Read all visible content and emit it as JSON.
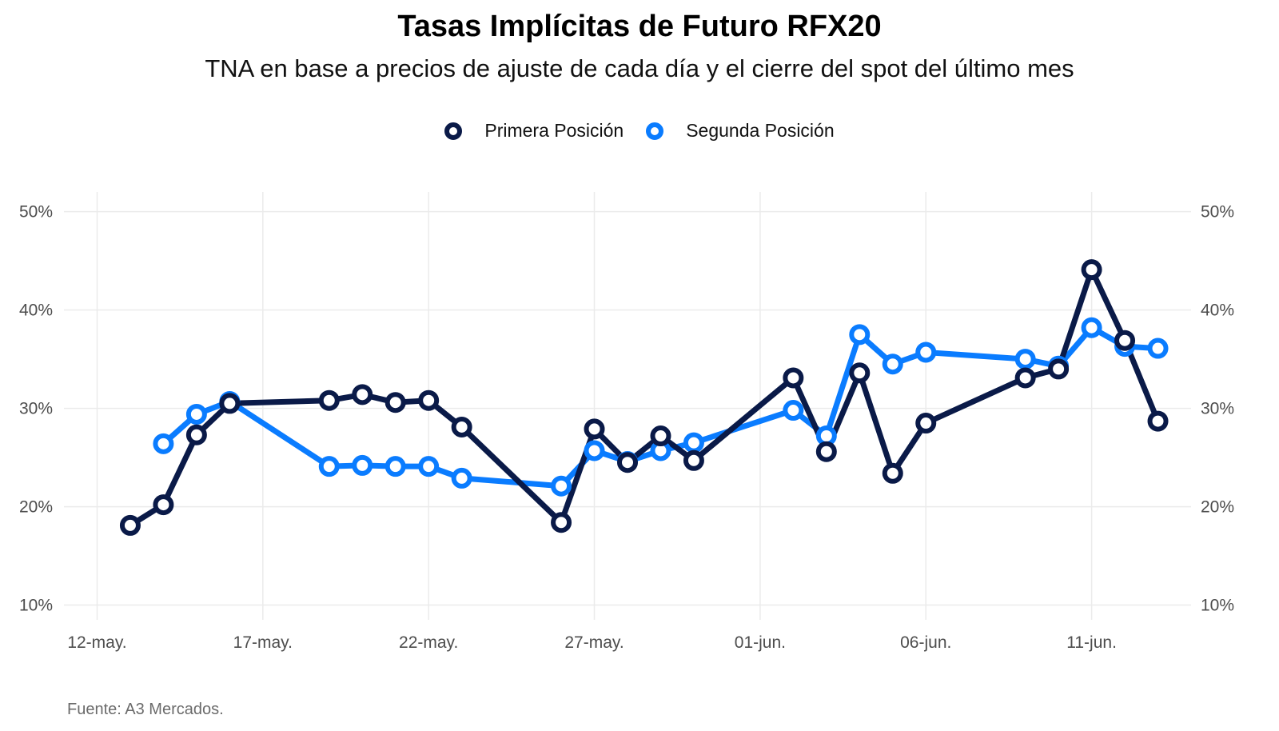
{
  "title": "Tasas Implícitas de Futuro RFX20",
  "subtitle": "TNA en base a precios de ajuste de cada día y el cierre del spot del último mes",
  "source": "Fuente: A3 Mercados.",
  "colors": {
    "primera": "#0a1a48",
    "segunda": "#0a7cff",
    "grid": "#ebebeb"
  },
  "chart_data": {
    "type": "line",
    "legend_position": "top",
    "grid": true,
    "ylim": [
      8.5,
      52
    ],
    "ytick_values": [
      10,
      20,
      30,
      40,
      50
    ],
    "ytick_labels": [
      "10%",
      "20%",
      "30%",
      "40%",
      "50%"
    ],
    "xtick_labels": [
      "12-may.",
      "17-may.",
      "22-may.",
      "27-may.",
      "01-jun.",
      "06-jun.",
      "11-jun."
    ],
    "xtick_dates": [
      "2025-05-12",
      "2025-05-17",
      "2025-05-22",
      "2025-05-27",
      "2025-06-01",
      "2025-06-06",
      "2025-06-11"
    ],
    "xlim": [
      "2025-05-11",
      "2025-06-14"
    ],
    "series": [
      {
        "name": "Primera Posición",
        "color": "#0a1a48",
        "points": [
          [
            "2025-05-13",
            18.1
          ],
          [
            "2025-05-14",
            20.2
          ],
          [
            "2025-05-15",
            27.3
          ],
          [
            "2025-05-16",
            30.5
          ],
          [
            "2025-05-19",
            30.8
          ],
          [
            "2025-05-20",
            31.4
          ],
          [
            "2025-05-21",
            30.6
          ],
          [
            "2025-05-22",
            30.8
          ],
          [
            "2025-05-23",
            28.1
          ],
          [
            "2025-05-26",
            18.4
          ],
          [
            "2025-05-27",
            27.9
          ],
          [
            "2025-05-28",
            24.5
          ],
          [
            "2025-05-29",
            27.2
          ],
          [
            "2025-05-30",
            24.7
          ],
          [
            "2025-06-02",
            33.1
          ],
          [
            "2025-06-03",
            25.6
          ],
          [
            "2025-06-04",
            33.6
          ],
          [
            "2025-06-05",
            23.4
          ],
          [
            "2025-06-06",
            28.5
          ],
          [
            "2025-06-09",
            33.1
          ],
          [
            "2025-06-10",
            34.0
          ],
          [
            "2025-06-11",
            44.1
          ],
          [
            "2025-06-12",
            36.9
          ],
          [
            "2025-06-13",
            28.7
          ]
        ]
      },
      {
        "name": "Segunda Posición",
        "color": "#0a7cff",
        "points": [
          [
            "2025-05-14",
            26.4
          ],
          [
            "2025-05-15",
            29.4
          ],
          [
            "2025-05-16",
            30.7
          ],
          [
            "2025-05-19",
            24.1
          ],
          [
            "2025-05-20",
            24.2
          ],
          [
            "2025-05-21",
            24.1
          ],
          [
            "2025-05-22",
            24.1
          ],
          [
            "2025-05-23",
            22.9
          ],
          [
            "2025-05-26",
            22.1
          ],
          [
            "2025-05-27",
            25.7
          ],
          [
            "2025-05-28",
            24.6
          ],
          [
            "2025-05-29",
            25.7
          ],
          [
            "2025-05-30",
            26.5
          ],
          [
            "2025-06-02",
            29.8
          ],
          [
            "2025-06-03",
            27.2
          ],
          [
            "2025-06-04",
            37.5
          ],
          [
            "2025-06-05",
            34.5
          ],
          [
            "2025-06-06",
            35.7
          ],
          [
            "2025-06-09",
            35.0
          ],
          [
            "2025-06-10",
            34.3
          ],
          [
            "2025-06-11",
            38.2
          ],
          [
            "2025-06-12",
            36.3
          ],
          [
            "2025-06-13",
            36.1
          ]
        ]
      }
    ]
  }
}
